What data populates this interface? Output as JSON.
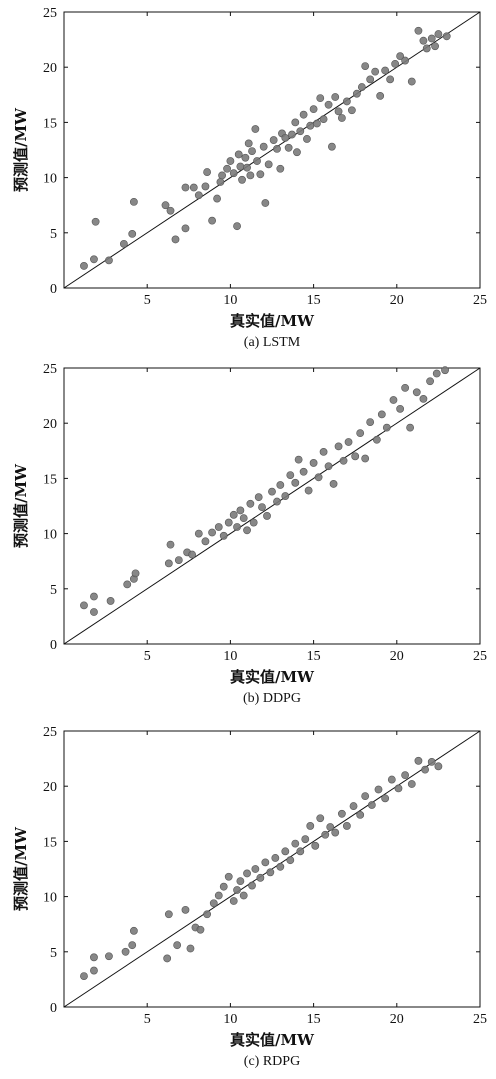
{
  "chart_data": [
    {
      "type": "scatter",
      "caption": "(a) LSTM",
      "xlabel": "真实值/MW",
      "ylabel": "预测值/MW",
      "xlim": [
        0,
        25
      ],
      "ylim": [
        0,
        25
      ],
      "x_ticks": [
        5,
        10,
        15,
        20,
        25
      ],
      "y_ticks": [
        0,
        5,
        10,
        15,
        20,
        25
      ],
      "grid": false,
      "reference_line": {
        "from": [
          0,
          0
        ],
        "to": [
          25,
          25
        ]
      },
      "marker_color": "#7a7a7a",
      "points": [
        [
          1.2,
          2.0
        ],
        [
          1.9,
          6.0
        ],
        [
          1.8,
          2.6
        ],
        [
          2.7,
          2.5
        ],
        [
          3.6,
          4.0
        ],
        [
          4.1,
          4.9
        ],
        [
          4.2,
          7.8
        ],
        [
          6.1,
          7.5
        ],
        [
          6.4,
          7.0
        ],
        [
          6.7,
          4.4
        ],
        [
          7.3,
          5.4
        ],
        [
          7.3,
          9.1
        ],
        [
          7.8,
          9.1
        ],
        [
          8.1,
          8.4
        ],
        [
          8.5,
          9.2
        ],
        [
          8.6,
          10.5
        ],
        [
          8.9,
          6.1
        ],
        [
          9.2,
          8.1
        ],
        [
          9.4,
          9.6
        ],
        [
          9.5,
          10.2
        ],
        [
          9.8,
          10.8
        ],
        [
          10.0,
          11.5
        ],
        [
          10.2,
          10.4
        ],
        [
          10.4,
          5.6
        ],
        [
          10.5,
          12.1
        ],
        [
          10.6,
          11.0
        ],
        [
          10.7,
          9.8
        ],
        [
          10.9,
          11.8
        ],
        [
          11.0,
          10.9
        ],
        [
          11.1,
          13.1
        ],
        [
          11.2,
          10.2
        ],
        [
          11.3,
          12.4
        ],
        [
          11.5,
          14.4
        ],
        [
          11.6,
          11.5
        ],
        [
          11.8,
          10.3
        ],
        [
          12.0,
          12.8
        ],
        [
          12.1,
          7.7
        ],
        [
          12.3,
          11.2
        ],
        [
          12.6,
          13.4
        ],
        [
          12.8,
          12.6
        ],
        [
          13.0,
          10.8
        ],
        [
          13.1,
          14.0
        ],
        [
          13.3,
          13.6
        ],
        [
          13.5,
          12.7
        ],
        [
          13.7,
          13.9
        ],
        [
          13.9,
          15.0
        ],
        [
          14.0,
          12.3
        ],
        [
          14.2,
          14.2
        ],
        [
          14.4,
          15.7
        ],
        [
          14.6,
          13.5
        ],
        [
          14.8,
          14.7
        ],
        [
          15.0,
          16.2
        ],
        [
          15.2,
          14.9
        ],
        [
          15.4,
          17.2
        ],
        [
          15.6,
          15.3
        ],
        [
          15.9,
          16.6
        ],
        [
          16.1,
          12.8
        ],
        [
          16.3,
          17.3
        ],
        [
          16.5,
          16.0
        ],
        [
          16.7,
          15.4
        ],
        [
          17.0,
          16.9
        ],
        [
          17.3,
          16.1
        ],
        [
          17.6,
          17.6
        ],
        [
          17.9,
          18.2
        ],
        [
          18.1,
          20.1
        ],
        [
          18.4,
          18.9
        ],
        [
          18.7,
          19.6
        ],
        [
          19.0,
          17.4
        ],
        [
          19.3,
          19.7
        ],
        [
          19.6,
          18.9
        ],
        [
          19.9,
          20.3
        ],
        [
          20.2,
          21.0
        ],
        [
          20.5,
          20.6
        ],
        [
          20.9,
          18.7
        ],
        [
          21.3,
          23.3
        ],
        [
          21.6,
          22.4
        ],
        [
          21.8,
          21.7
        ],
        [
          22.1,
          22.6
        ],
        [
          22.3,
          21.9
        ],
        [
          22.5,
          23.0
        ],
        [
          23.0,
          22.8
        ]
      ]
    },
    {
      "type": "scatter",
      "caption": "(b) DDPG",
      "xlabel": "真实值/MW",
      "ylabel": "预测值/MW",
      "xlim": [
        0,
        25
      ],
      "ylim": [
        0,
        25
      ],
      "x_ticks": [
        5,
        10,
        15,
        20,
        25
      ],
      "y_ticks": [
        0,
        5,
        10,
        15,
        20,
        25
      ],
      "grid": false,
      "reference_line": {
        "from": [
          0,
          0
        ],
        "to": [
          25,
          25
        ]
      },
      "marker_color": "#7a7a7a",
      "points": [
        [
          1.2,
          3.5
        ],
        [
          1.8,
          4.3
        ],
        [
          1.8,
          2.9
        ],
        [
          2.8,
          3.9
        ],
        [
          3.8,
          5.4
        ],
        [
          4.2,
          5.9
        ],
        [
          4.3,
          6.4
        ],
        [
          6.3,
          7.3
        ],
        [
          6.4,
          9.0
        ],
        [
          6.9,
          7.6
        ],
        [
          7.4,
          8.3
        ],
        [
          7.7,
          8.1
        ],
        [
          8.1,
          10.0
        ],
        [
          8.5,
          9.3
        ],
        [
          8.9,
          10.1
        ],
        [
          9.3,
          10.6
        ],
        [
          9.6,
          9.8
        ],
        [
          9.9,
          11.0
        ],
        [
          10.2,
          11.7
        ],
        [
          10.4,
          10.6
        ],
        [
          10.6,
          12.1
        ],
        [
          10.8,
          11.4
        ],
        [
          11.0,
          10.3
        ],
        [
          11.2,
          12.7
        ],
        [
          11.4,
          11.0
        ],
        [
          11.7,
          13.3
        ],
        [
          11.9,
          12.4
        ],
        [
          12.2,
          11.6
        ],
        [
          12.5,
          13.8
        ],
        [
          12.8,
          12.9
        ],
        [
          13.0,
          14.4
        ],
        [
          13.3,
          13.4
        ],
        [
          13.6,
          15.3
        ],
        [
          13.9,
          14.6
        ],
        [
          14.1,
          16.7
        ],
        [
          14.4,
          15.6
        ],
        [
          14.7,
          13.9
        ],
        [
          15.0,
          16.4
        ],
        [
          15.3,
          15.1
        ],
        [
          15.6,
          17.4
        ],
        [
          15.9,
          16.1
        ],
        [
          16.2,
          14.5
        ],
        [
          16.5,
          17.9
        ],
        [
          16.8,
          16.6
        ],
        [
          17.1,
          18.3
        ],
        [
          17.5,
          17.0
        ],
        [
          17.8,
          19.1
        ],
        [
          18.1,
          16.8
        ],
        [
          18.4,
          20.1
        ],
        [
          18.8,
          18.5
        ],
        [
          19.1,
          20.8
        ],
        [
          19.4,
          19.6
        ],
        [
          19.8,
          22.1
        ],
        [
          20.2,
          21.3
        ],
        [
          20.5,
          23.2
        ],
        [
          20.8,
          19.6
        ],
        [
          21.2,
          22.8
        ],
        [
          21.6,
          22.2
        ],
        [
          22.0,
          23.8
        ],
        [
          22.4,
          24.5
        ],
        [
          22.9,
          24.8
        ]
      ]
    },
    {
      "type": "scatter",
      "caption": "(c) RDPG",
      "xlabel": "真实值/MW",
      "ylabel": "预测值/MW",
      "xlim": [
        0,
        25
      ],
      "ylim": [
        0,
        25
      ],
      "x_ticks": [
        5,
        10,
        15,
        20,
        25
      ],
      "y_ticks": [
        0,
        5,
        10,
        15,
        20,
        25
      ],
      "grid": false,
      "reference_line": {
        "from": [
          0,
          0
        ],
        "to": [
          25,
          25
        ]
      },
      "marker_color": "#7a7a7a",
      "points": [
        [
          1.2,
          2.8
        ],
        [
          1.8,
          3.3
        ],
        [
          1.8,
          4.5
        ],
        [
          2.7,
          4.6
        ],
        [
          3.7,
          5.0
        ],
        [
          4.1,
          5.6
        ],
        [
          4.2,
          6.9
        ],
        [
          6.2,
          4.4
        ],
        [
          6.3,
          8.4
        ],
        [
          6.8,
          5.6
        ],
        [
          7.3,
          8.8
        ],
        [
          7.6,
          5.3
        ],
        [
          7.9,
          7.2
        ],
        [
          8.2,
          7.0
        ],
        [
          8.6,
          8.4
        ],
        [
          9.0,
          9.4
        ],
        [
          9.3,
          10.1
        ],
        [
          9.6,
          10.9
        ],
        [
          9.9,
          11.8
        ],
        [
          10.2,
          9.6
        ],
        [
          10.4,
          10.6
        ],
        [
          10.6,
          11.4
        ],
        [
          10.8,
          10.1
        ],
        [
          11.0,
          12.1
        ],
        [
          11.3,
          11.0
        ],
        [
          11.5,
          12.5
        ],
        [
          11.8,
          11.7
        ],
        [
          12.1,
          13.1
        ],
        [
          12.4,
          12.2
        ],
        [
          12.7,
          13.5
        ],
        [
          13.0,
          12.7
        ],
        [
          13.3,
          14.1
        ],
        [
          13.6,
          13.3
        ],
        [
          13.9,
          14.8
        ],
        [
          14.2,
          14.1
        ],
        [
          14.5,
          15.2
        ],
        [
          14.8,
          16.4
        ],
        [
          15.1,
          14.6
        ],
        [
          15.4,
          17.1
        ],
        [
          15.7,
          15.6
        ],
        [
          16.0,
          16.3
        ],
        [
          16.3,
          15.8
        ],
        [
          16.7,
          17.5
        ],
        [
          17.0,
          16.4
        ],
        [
          17.4,
          18.2
        ],
        [
          17.8,
          17.4
        ],
        [
          18.1,
          19.1
        ],
        [
          18.5,
          18.3
        ],
        [
          18.9,
          19.7
        ],
        [
          19.3,
          18.9
        ],
        [
          19.7,
          20.6
        ],
        [
          20.1,
          19.8
        ],
        [
          20.5,
          21.0
        ],
        [
          20.9,
          20.2
        ],
        [
          21.3,
          22.3
        ],
        [
          21.7,
          21.5
        ],
        [
          22.1,
          22.2
        ],
        [
          22.5,
          21.8
        ]
      ]
    }
  ]
}
